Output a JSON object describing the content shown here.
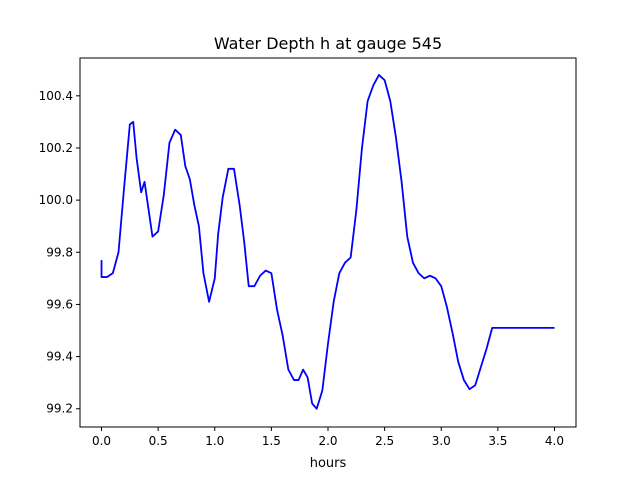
{
  "chart_data": {
    "type": "line",
    "title": "Water Depth h at gauge 545",
    "xlabel": "hours",
    "ylabel": "",
    "xlim": [
      -0.19,
      4.19
    ],
    "ylim": [
      99.13,
      100.545
    ],
    "x_ticks": [
      0.0,
      0.5,
      1.0,
      1.5,
      2.0,
      2.5,
      3.0,
      3.5,
      4.0
    ],
    "x_tick_labels": [
      "0.0",
      "0.5",
      "1.0",
      "1.5",
      "2.0",
      "2.5",
      "3.0",
      "3.5",
      "4.0"
    ],
    "y_ticks": [
      99.2,
      99.4,
      99.6,
      99.8,
      100.0,
      100.2,
      100.4
    ],
    "y_tick_labels": [
      "99.2",
      "99.4",
      "99.6",
      "99.8",
      "100.0",
      "100.2",
      "100.4"
    ],
    "grid": false,
    "legend": "none",
    "series": [
      {
        "color": "#0000ff",
        "x": [
          0.0,
          0.0,
          0.05,
          0.1,
          0.15,
          0.2,
          0.25,
          0.28,
          0.31,
          0.35,
          0.38,
          0.42,
          0.45,
          0.5,
          0.55,
          0.6,
          0.65,
          0.7,
          0.74,
          0.78,
          0.82,
          0.86,
          0.9,
          0.95,
          1.0,
          1.03,
          1.07,
          1.12,
          1.17,
          1.22,
          1.26,
          1.3,
          1.35,
          1.4,
          1.45,
          1.5,
          1.55,
          1.6,
          1.65,
          1.7,
          1.74,
          1.78,
          1.82,
          1.86,
          1.9,
          1.95,
          2.0,
          2.05,
          2.1,
          2.15,
          2.2,
          2.25,
          2.3,
          2.35,
          2.4,
          2.45,
          2.5,
          2.55,
          2.6,
          2.65,
          2.7,
          2.75,
          2.8,
          2.85,
          2.9,
          2.95,
          3.0,
          3.05,
          3.1,
          3.15,
          3.2,
          3.25,
          3.3,
          3.35,
          3.4,
          3.45,
          3.5,
          3.55,
          3.6,
          3.65,
          3.7,
          3.75,
          3.8,
          3.85,
          3.9,
          3.95,
          4.0
        ],
        "y": [
          99.77,
          99.705,
          99.705,
          99.72,
          99.8,
          100.05,
          100.29,
          100.3,
          100.16,
          100.03,
          100.07,
          99.95,
          99.86,
          99.88,
          100.02,
          100.22,
          100.27,
          100.25,
          100.13,
          100.08,
          99.98,
          99.9,
          99.72,
          99.61,
          99.7,
          99.87,
          100.01,
          100.12,
          100.12,
          99.98,
          99.84,
          99.67,
          99.67,
          99.71,
          99.73,
          99.72,
          99.58,
          99.48,
          99.35,
          99.31,
          99.31,
          99.35,
          99.32,
          99.22,
          99.2,
          99.27,
          99.45,
          99.61,
          99.72,
          99.76,
          99.78,
          99.96,
          100.2,
          100.38,
          100.44,
          100.48,
          100.46,
          100.38,
          100.24,
          100.07,
          99.86,
          99.76,
          99.72,
          99.7,
          99.71,
          99.7,
          99.67,
          99.59,
          99.49,
          99.38,
          99.31,
          99.275,
          99.29,
          99.36,
          99.43,
          99.51,
          99.51,
          99.51,
          99.51,
          99.51,
          99.51,
          99.51,
          99.51,
          99.51,
          99.51,
          99.51,
          99.51
        ]
      }
    ]
  }
}
